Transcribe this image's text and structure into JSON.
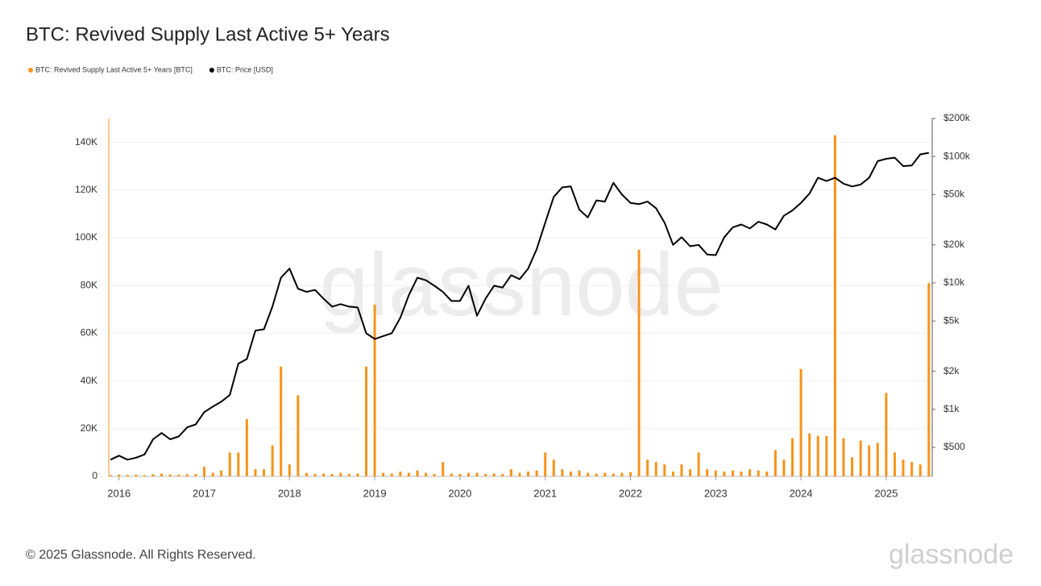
{
  "chart_data": {
    "type": "bar-line",
    "title": "BTC: Revived Supply Last Active 5+ Years",
    "footer": "© 2025 Glassnode. All Rights Reserved.",
    "watermark": "glassnode",
    "x": [
      2015.9,
      2016.0,
      2016.1,
      2016.2,
      2016.3,
      2016.4,
      2016.5,
      2016.6,
      2016.7,
      2016.8,
      2016.9,
      2017.0,
      2017.1,
      2017.2,
      2017.3,
      2017.4,
      2017.5,
      2017.6,
      2017.7,
      2017.8,
      2017.9,
      2018.0,
      2018.1,
      2018.2,
      2018.3,
      2018.4,
      2018.5,
      2018.6,
      2018.7,
      2018.8,
      2018.9,
      2019.0,
      2019.1,
      2019.2,
      2019.3,
      2019.4,
      2019.5,
      2019.6,
      2019.7,
      2019.8,
      2019.9,
      2020.0,
      2020.1,
      2020.2,
      2020.3,
      2020.4,
      2020.5,
      2020.6,
      2020.7,
      2020.8,
      2020.9,
      2021.0,
      2021.1,
      2021.2,
      2021.3,
      2021.4,
      2021.5,
      2021.6,
      2021.7,
      2021.8,
      2021.9,
      2022.0,
      2022.1,
      2022.2,
      2022.3,
      2022.4,
      2022.5,
      2022.6,
      2022.7,
      2022.8,
      2022.9,
      2023.0,
      2023.1,
      2023.2,
      2023.3,
      2023.4,
      2023.5,
      2023.6,
      2023.7,
      2023.8,
      2023.9,
      2024.0,
      2024.1,
      2024.2,
      2024.3,
      2024.4,
      2024.5,
      2024.6,
      2024.7,
      2024.8,
      2024.9,
      2025.0,
      2025.1,
      2025.2,
      2025.3,
      2025.4,
      2025.5
    ],
    "series": [
      {
        "name": "BTC: Revived Supply Last Active 5+ Years [BTC]",
        "color": "#f7931a",
        "kind": "bar",
        "values": [
          500,
          800,
          600,
          700,
          500,
          900,
          1200,
          800,
          700,
          900,
          1000,
          4000,
          1500,
          2500,
          10000,
          10000,
          24000,
          3000,
          3000,
          13000,
          46000,
          5000,
          34000,
          1500,
          1000,
          1200,
          1000,
          1500,
          1000,
          1200,
          46000,
          72000,
          1500,
          1200,
          2000,
          1500,
          2500,
          1500,
          1000,
          6000,
          1200,
          1000,
          1500,
          1500,
          1000,
          1200,
          1000,
          3000,
          1500,
          2000,
          2500,
          10000,
          7000,
          3000,
          2000,
          2500,
          1500,
          1200,
          1500,
          1200,
          1500,
          1800,
          95000,
          7000,
          6000,
          5000,
          2000,
          5000,
          3000,
          10000,
          3000,
          2500,
          2000,
          2500,
          2000,
          3000,
          2500,
          2000,
          11000,
          7000,
          16000,
          45000,
          18000,
          17000,
          17000,
          143000,
          16000,
          8000,
          15000,
          13000,
          14000,
          35000,
          10000,
          7000,
          6000,
          5000,
          81000
        ]
      },
      {
        "name": "BTC: Price [USD]",
        "color": "#000000",
        "kind": "line",
        "axis": "y2",
        "values": [
          400,
          430,
          400,
          415,
          440,
          580,
          650,
          580,
          610,
          720,
          760,
          950,
          1050,
          1150,
          1300,
          2300,
          2500,
          4200,
          4300,
          6500,
          11000,
          13000,
          9000,
          8500,
          8800,
          7500,
          6500,
          6800,
          6500,
          6400,
          4000,
          3600,
          3800,
          4000,
          5300,
          8000,
          11000,
          10500,
          9500,
          8500,
          7200,
          7200,
          9500,
          5500,
          7500,
          9500,
          9200,
          11500,
          10700,
          13000,
          18500,
          30000,
          48000,
          57000,
          58000,
          38000,
          33000,
          45000,
          44000,
          62000,
          50000,
          43000,
          42000,
          44000,
          39000,
          30000,
          20000,
          23000,
          19500,
          20000,
          16800,
          16600,
          23000,
          27500,
          29000,
          27000,
          30500,
          29000,
          26500,
          34000,
          37500,
          43000,
          51000,
          68000,
          64000,
          68000,
          61000,
          58000,
          60000,
          68000,
          92000,
          96000,
          98000,
          84000,
          85000,
          104000,
          107000
        ]
      }
    ],
    "xlim": [
      2015.88,
      2025.54
    ],
    "xticks": [
      2016,
      2017,
      2018,
      2019,
      2020,
      2021,
      2022,
      2023,
      2024,
      2025
    ],
    "ylim": [
      0,
      150000
    ],
    "yticks": [
      0,
      {
        "value": 20000,
        "label": "20K"
      },
      {
        "value": 40000,
        "label": "40K"
      },
      {
        "value": 60000,
        "label": "60K"
      },
      {
        "value": 80000,
        "label": "80K"
      },
      {
        "value": 100000,
        "label": "100K"
      },
      {
        "value": 120000,
        "label": "120K"
      },
      {
        "value": 140000,
        "label": "140K"
      }
    ],
    "y2lim": [
      295,
      200000
    ],
    "y2log": true,
    "y2ticks": [
      {
        "value": 500,
        "label": "$500"
      },
      {
        "value": 1000,
        "label": "$1k"
      },
      {
        "value": 2000,
        "label": "$2k"
      },
      {
        "value": 5000,
        "label": "$5k"
      },
      {
        "value": 10000,
        "label": "$10k"
      },
      {
        "value": 20000,
        "label": "$20k"
      },
      {
        "value": 50000,
        "label": "$50k"
      },
      {
        "value": 100000,
        "label": "$100k"
      },
      {
        "value": 200000,
        "label": "$200k"
      }
    ],
    "grid": true
  }
}
